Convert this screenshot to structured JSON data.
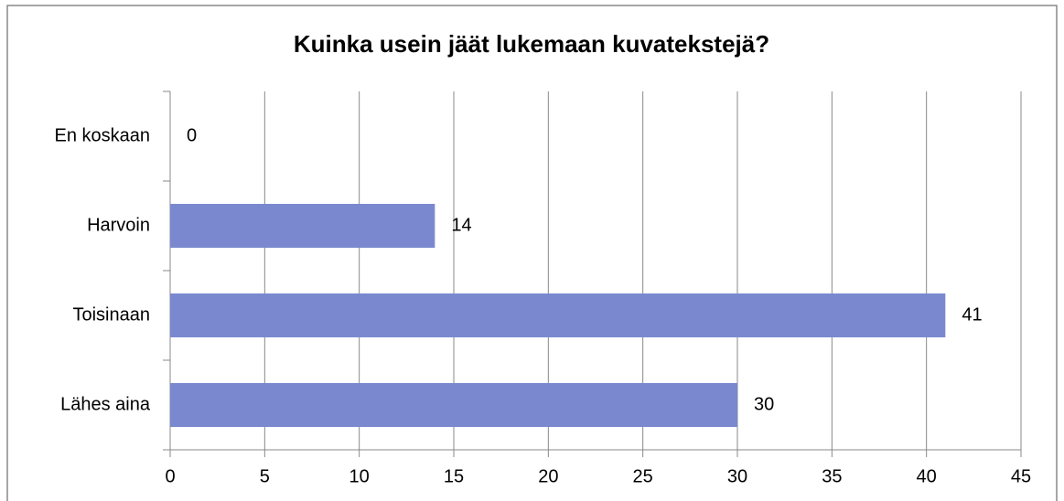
{
  "chart_data": {
    "type": "barh",
    "title": "Kuinka usein jäät lukemaan kuvatekstejä?",
    "categories": [
      "En koskaan",
      "Harvoin",
      "Toisinaan",
      "Lähes aina"
    ],
    "values": [
      0,
      14,
      41,
      30
    ],
    "color": "#7a89cf",
    "xlim": [
      0,
      45
    ],
    "xticks": [
      0,
      5,
      10,
      15,
      20,
      25,
      30,
      35,
      40,
      45
    ],
    "grid": true
  }
}
